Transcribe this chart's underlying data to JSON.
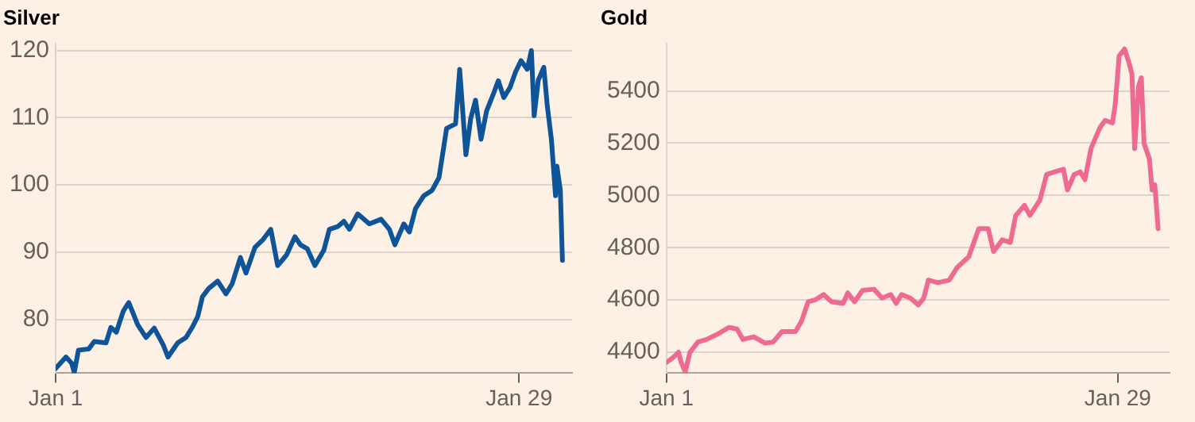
{
  "chart_data": [
    {
      "type": "line",
      "title": "Silver",
      "xlim": [
        "--01-01",
        "--02-01T05:00"
      ],
      "xticks": [
        {
          "value": "--01-01",
          "label": "Jan 1"
        },
        {
          "value": "--01-29",
          "label": "Jan 29"
        }
      ],
      "ylim": [
        72,
        121
      ],
      "yticks": [
        80,
        90,
        100,
        110,
        120
      ],
      "grid": "y",
      "legend": false,
      "series": [
        {
          "color": "#0f5499",
          "x": [
            "--01-01T00:00",
            "--01-01T15:00",
            "--01-01T23:00",
            "--01-02T03:00",
            "--01-02T09:00",
            "--01-03T00:00",
            "--01-03T08:00",
            "--01-04T01:00",
            "--01-04T08:00",
            "--01-04T16:00",
            "--01-05T02:00",
            "--01-05T10:00",
            "--01-05T23:00",
            "--01-06T11:00",
            "--01-06T23:00",
            "--01-07T12:00",
            "--01-07T19:00",
            "--01-08T09:00",
            "--01-08T21:00",
            "--01-09T06:00",
            "--01-09T14:00",
            "--01-09T21:00",
            "--01-10T06:00",
            "--01-10T19:00",
            "--01-11T07:00",
            "--01-11T16:00",
            "--01-12T04:00",
            "--01-12T12:00",
            "--01-13T01:00",
            "--01-13T13:00",
            "--01-14T00:00",
            "--01-14T10:00",
            "--01-14T23:00",
            "--01-15T11:00",
            "--01-15T19:00",
            "--01-16T05:00",
            "--01-16T16:00",
            "--01-17T05:00",
            "--01-17T13:00",
            "--01-18T01:00",
            "--01-18T10:00",
            "--01-18T18:00",
            "--01-19T06:00",
            "--01-19T23:00",
            "--01-20T16:00",
            "--01-21T04:00",
            "--01-21T12:00",
            "--01-22T01:00",
            "--01-22T09:00",
            "--01-22T18:00",
            "--01-23T06:00",
            "--01-23T18:00",
            "--01-24T04:00",
            "--01-24T15:00",
            "--01-25T04:00",
            "--01-25T10:00",
            "--01-25T19:00",
            "--01-26T02:00",
            "--01-26T09:00",
            "--01-26T17:00",
            "--01-27T01:00",
            "--01-27T10:00",
            "--01-27T18:00",
            "--01-28T02:00",
            "--01-28T11:00",
            "--01-28T19:00",
            "--01-29T03:00",
            "--01-29T12:00",
            "--01-29T18:00",
            "--01-29T22:00",
            "--01-30T04:00",
            "--01-30T12:00",
            "--01-30T17:00",
            "--01-30T23:00",
            "--01-31T05:00",
            "--01-31T07:00",
            "--01-31T12:00",
            "--01-31T15:00"
          ],
          "values": [
            72.7,
            74.4,
            73.5,
            72.1,
            75.4,
            75.6,
            76.7,
            76.5,
            78.8,
            78.1,
            81.2,
            82.5,
            79.2,
            77.3,
            78.7,
            76.2,
            74.4,
            76.5,
            77.3,
            78.8,
            80.4,
            83.4,
            84.6,
            85.7,
            83.8,
            85.3,
            89.2,
            86.9,
            90.7,
            91.9,
            93.4,
            88.0,
            89.6,
            92.3,
            91.1,
            90.5,
            88.0,
            90.3,
            93.4,
            93.8,
            94.6,
            93.4,
            95.7,
            94.2,
            94.9,
            93.4,
            91.1,
            94.2,
            93.0,
            96.5,
            98.4,
            99.2,
            101.1,
            108.4,
            109.1,
            117.2,
            104.5,
            109.9,
            112.6,
            106.8,
            111.0,
            113.3,
            115.5,
            113.0,
            114.5,
            116.8,
            118.5,
            117.2,
            120.0,
            110.3,
            115.6,
            117.5,
            111.8,
            106.8,
            98.4,
            102.8,
            99.2,
            88.8
          ]
        }
      ]
    },
    {
      "type": "line",
      "title": "Gold",
      "xlim": [
        "--01-01",
        "--02-01T05:00"
      ],
      "xticks": [
        {
          "value": "--01-01",
          "label": "Jan 1"
        },
        {
          "value": "--01-29",
          "label": "Jan 29"
        }
      ],
      "ylim": [
        4320,
        5580
      ],
      "yticks": [
        4400,
        4600,
        4800,
        5000,
        5200,
        5400
      ],
      "grid": "y",
      "legend": false,
      "series": [
        {
          "color": "#ee6a91",
          "x": [
            "--01-01T00:00",
            "--01-01T10:00",
            "--01-01T18:00",
            "--01-01T22:00",
            "--01-02T04:00",
            "--01-02T11:00",
            "--01-02T23:00",
            "--01-03T12:00",
            "--01-04T04:00",
            "--01-04T21:00",
            "--01-05T09:00",
            "--01-05T18:00",
            "--01-06T10:00",
            "--01-07T03:00",
            "--01-07T15:00",
            "--01-08T04:00",
            "--01-09T00:00",
            "--01-09T09:00",
            "--01-09T19:00",
            "--01-10T06:00",
            "--01-10T18:00",
            "--01-11T06:00",
            "--01-11T23:00",
            "--01-12T06:00",
            "--01-12T16:00",
            "--01-13T04:00",
            "--01-13T21:00",
            "--01-14T09:00",
            "--01-14T22:00",
            "--01-15T06:00",
            "--01-15T14:00",
            "--01-16T03:00",
            "--01-16T15:00",
            "--01-16T23:00",
            "--01-17T06:00",
            "--01-17T20:00",
            "--01-18T13:00",
            "--01-19T01:00",
            "--01-19T18:00",
            "--01-20T09:00",
            "--01-20T23:00",
            "--01-21T07:00",
            "--01-21T20:00",
            "--01-22T08:00",
            "--01-22T16:00",
            "--01-23T05:00",
            "--01-23T13:00",
            "--01-24T04:00",
            "--01-24T14:00",
            "--01-25T02:00",
            "--01-25T15:00",
            "--01-25T21:00",
            "--01-26T07:00",
            "--01-26T16:00",
            "--01-26T23:00",
            "--01-27T08:00",
            "--01-27T21:00",
            "--01-28T05:00",
            "--01-28T16:00",
            "--01-28T20:00",
            "--01-29T02:00",
            "--01-29T10:00",
            "--01-29T17:00",
            "--01-29T21:00",
            "--01-30T01:00",
            "--01-30T07:00",
            "--01-30T11:00",
            "--01-30T15:00",
            "--01-30T23:00",
            "--01-31T03:00",
            "--01-31T07:00",
            "--01-31T12:00"
          ],
          "values": [
            4361,
            4380,
            4400,
            4361,
            4325,
            4400,
            4439,
            4449,
            4469,
            4495,
            4489,
            4449,
            4459,
            4435,
            4439,
            4479,
            4479,
            4518,
            4593,
            4601,
            4621,
            4593,
            4587,
            4627,
            4593,
            4637,
            4641,
            4607,
            4621,
            4587,
            4621,
            4607,
            4581,
            4607,
            4676,
            4666,
            4676,
            4725,
            4765,
            4873,
            4873,
            4785,
            4830,
            4820,
            4923,
            4962,
            4923,
            4982,
            5080,
            5090,
            5100,
            5021,
            5080,
            5090,
            5060,
            5179,
            5258,
            5287,
            5277,
            5346,
            5534,
            5560,
            5504,
            5464,
            5179,
            5420,
            5450,
            5199,
            5139,
            5021,
            5041,
            4873
          ]
        }
      ]
    }
  ]
}
